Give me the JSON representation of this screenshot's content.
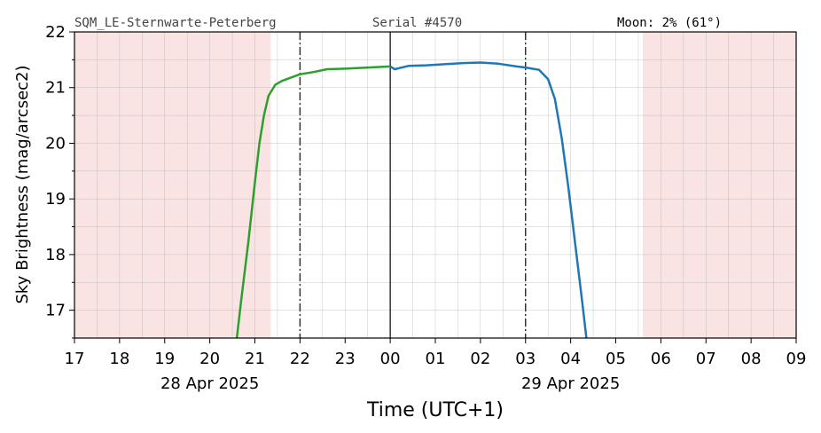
{
  "header": {
    "station": "SQM_LE-Sternwarte-Peterberg",
    "serial": "Serial #4570",
    "moon": "Moon: 2% (61°)"
  },
  "chart_data": {
    "type": "line",
    "xlabel": "Time (UTC+1)",
    "ylabel": "Sky Brightness (mag/arcsec2)",
    "ylim": [
      16.5,
      22
    ],
    "y_ticks": [
      "17",
      "18",
      "19",
      "20",
      "21",
      "22"
    ],
    "x_ticks": [
      "17",
      "18",
      "19",
      "20",
      "21",
      "22",
      "23",
      "00",
      "01",
      "02",
      "03",
      "04",
      "05",
      "06",
      "07",
      "08",
      "09"
    ],
    "date_labels": [
      {
        "text": "28 Apr 2025",
        "at_hour": 20
      },
      {
        "text": "29 Apr 2025",
        "at_hour": 28
      }
    ],
    "grid": true,
    "x_hours_from_first_tick": true,
    "shaded_daylight_hours": [
      [
        0,
        4.35
      ],
      [
        12.6,
        16
      ]
    ],
    "dashdot_lines_hours": [
      5,
      10
    ],
    "midnight_line_hour": 7,
    "series": [
      {
        "color": "#2ca02c",
        "x": [
          3.6,
          3.7,
          3.85,
          4.0,
          4.1,
          4.2,
          4.3,
          4.45,
          4.6,
          4.8,
          5.0,
          5.3,
          5.6,
          6.0,
          6.5,
          7.0
        ],
        "y": [
          16.5,
          17.2,
          18.2,
          19.3,
          20.0,
          20.5,
          20.85,
          21.05,
          21.12,
          21.18,
          21.24,
          21.28,
          21.33,
          21.34,
          21.36,
          21.38
        ]
      },
      {
        "color": "#1f77b4",
        "x": [
          7.0,
          7.1,
          7.4,
          7.8,
          8.2,
          8.6,
          9.0,
          9.4,
          9.8,
          10.0,
          10.3,
          10.5,
          10.65,
          10.8,
          10.95,
          11.1,
          11.25,
          11.35
        ],
        "y": [
          21.38,
          21.33,
          21.39,
          21.4,
          21.42,
          21.44,
          21.45,
          21.43,
          21.38,
          21.36,
          21.32,
          21.15,
          20.8,
          20.1,
          19.2,
          18.2,
          17.2,
          16.5
        ]
      }
    ]
  },
  "colors": {
    "daylight_shade": "#fae3e3",
    "grid": "#b0b0b0",
    "marker_line": "#333333",
    "header_text": "#444444"
  }
}
